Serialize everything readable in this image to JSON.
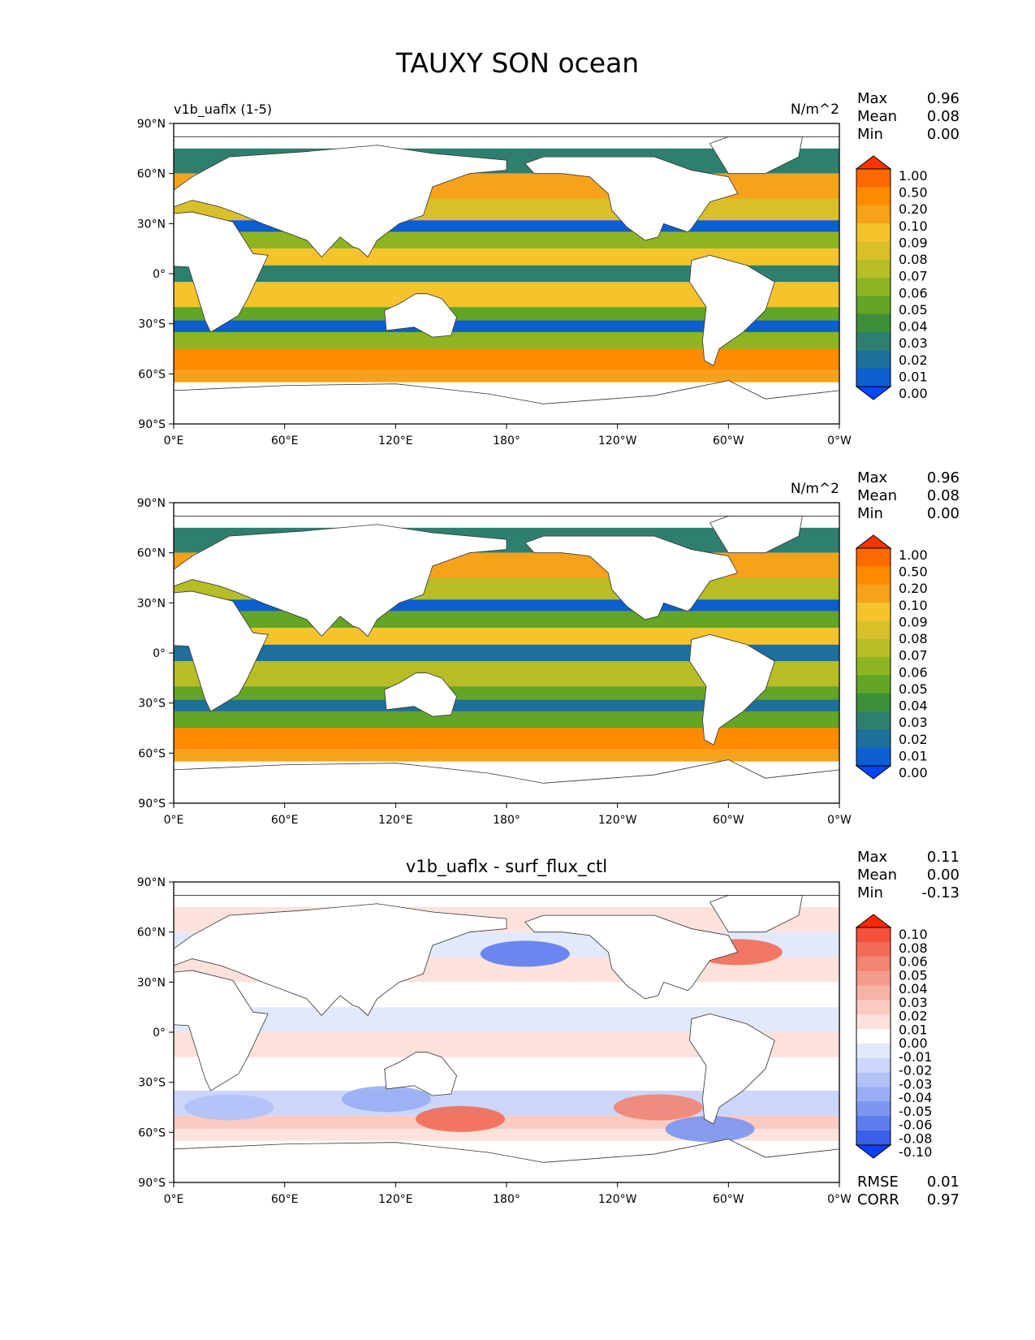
{
  "figure": {
    "title": "TAUXY SON ocean"
  },
  "chart_data": [
    {
      "type": "heatmap",
      "left_title": "v1b_uaflx (1-5)",
      "center_title": "",
      "units": "N/m^2",
      "stats": [
        {
          "label": "Max",
          "value": "0.96"
        },
        {
          "label": "Mean",
          "value": "0.08"
        },
        {
          "label": "Min",
          "value": "0.00"
        }
      ],
      "x_ticks": [
        "0°E",
        "60°E",
        "120°E",
        "180°",
        "120°W",
        "60°W",
        "0°W"
      ],
      "y_ticks": [
        "90°N",
        "60°N",
        "30°N",
        "0°",
        "30°S",
        "60°S",
        "90°S"
      ],
      "xlim": [
        0,
        360
      ],
      "ylim": [
        -90,
        90
      ],
      "colorbar": {
        "levels": [
          "1.00",
          "0.50",
          "0.20",
          "0.10",
          "0.09",
          "0.08",
          "0.07",
          "0.06",
          "0.05",
          "0.04",
          "0.03",
          "0.02",
          "0.01",
          "0.00"
        ],
        "colors": [
          "#ff3300",
          "#ff6a00",
          "#ff8c00",
          "#f7a21b",
          "#f5c32c",
          "#d9c02b",
          "#b6bd25",
          "#8db521",
          "#63a524",
          "#3d8f3a",
          "#2f7f6e",
          "#1d6f9c",
          "#0d5ecf",
          "#0045ff"
        ]
      },
      "zonal_bands": [
        {
          "lat_min": 60,
          "lat_max": 75,
          "level": "0.03"
        },
        {
          "lat_min": 45,
          "lat_max": 60,
          "level": "0.10"
        },
        {
          "lat_min": 32,
          "lat_max": 45,
          "level": "0.08"
        },
        {
          "lat_min": 25,
          "lat_max": 32,
          "level": "0.01"
        },
        {
          "lat_min": 15,
          "lat_max": 25,
          "level": "0.06"
        },
        {
          "lat_min": 5,
          "lat_max": 15,
          "level": "0.09"
        },
        {
          "lat_min": -5,
          "lat_max": 5,
          "level": "0.03"
        },
        {
          "lat_min": -20,
          "lat_max": -5,
          "level": "0.09"
        },
        {
          "lat_min": -28,
          "lat_max": -20,
          "level": "0.05"
        },
        {
          "lat_min": -35,
          "lat_max": -28,
          "level": "0.01"
        },
        {
          "lat_min": -45,
          "lat_max": -35,
          "level": "0.06"
        },
        {
          "lat_min": -58,
          "lat_max": -45,
          "level": "0.20"
        },
        {
          "lat_min": -65,
          "lat_max": -58,
          "level": "0.10"
        }
      ]
    },
    {
      "type": "heatmap",
      "left_title": "",
      "center_title": "",
      "units": "N/m^2",
      "stats": [
        {
          "label": "Max",
          "value": "0.96"
        },
        {
          "label": "Mean",
          "value": "0.08"
        },
        {
          "label": "Min",
          "value": "0.00"
        }
      ],
      "x_ticks": [
        "0°E",
        "60°E",
        "120°E",
        "180°",
        "120°W",
        "60°W",
        "0°W"
      ],
      "y_ticks": [
        "90°N",
        "60°N",
        "30°N",
        "0°",
        "30°S",
        "60°S",
        "90°S"
      ],
      "xlim": [
        0,
        360
      ],
      "ylim": [
        -90,
        90
      ],
      "colorbar": {
        "levels": [
          "1.00",
          "0.50",
          "0.20",
          "0.10",
          "0.09",
          "0.08",
          "0.07",
          "0.06",
          "0.05",
          "0.04",
          "0.03",
          "0.02",
          "0.01",
          "0.00"
        ],
        "colors": [
          "#ff3300",
          "#ff6a00",
          "#ff8c00",
          "#f7a21b",
          "#f5c32c",
          "#d9c02b",
          "#b6bd25",
          "#8db521",
          "#63a524",
          "#3d8f3a",
          "#2f7f6e",
          "#1d6f9c",
          "#0d5ecf",
          "#0045ff"
        ]
      },
      "zonal_bands": [
        {
          "lat_min": 60,
          "lat_max": 75,
          "level": "0.03"
        },
        {
          "lat_min": 45,
          "lat_max": 60,
          "level": "0.10"
        },
        {
          "lat_min": 32,
          "lat_max": 45,
          "level": "0.07"
        },
        {
          "lat_min": 25,
          "lat_max": 32,
          "level": "0.01"
        },
        {
          "lat_min": 15,
          "lat_max": 25,
          "level": "0.05"
        },
        {
          "lat_min": 5,
          "lat_max": 15,
          "level": "0.09"
        },
        {
          "lat_min": -5,
          "lat_max": 5,
          "level": "0.02"
        },
        {
          "lat_min": -20,
          "lat_max": -5,
          "level": "0.07"
        },
        {
          "lat_min": -28,
          "lat_max": -20,
          "level": "0.05"
        },
        {
          "lat_min": -35,
          "lat_max": -28,
          "level": "0.02"
        },
        {
          "lat_min": -45,
          "lat_max": -35,
          "level": "0.05"
        },
        {
          "lat_min": -58,
          "lat_max": -45,
          "level": "0.20"
        },
        {
          "lat_min": -65,
          "lat_max": -58,
          "level": "0.10"
        }
      ]
    },
    {
      "type": "heatmap",
      "left_title": "",
      "center_title": "v1b_uaflx - surf_flux_ctl",
      "units": "",
      "stats": [
        {
          "label": "Max",
          "value": "0.11"
        },
        {
          "label": "Mean",
          "value": "0.00"
        },
        {
          "label": "Min",
          "value": "-0.13"
        }
      ],
      "bottom_stats": [
        {
          "label": "RMSE",
          "value": "0.01"
        },
        {
          "label": "CORR",
          "value": "0.97"
        }
      ],
      "x_ticks": [
        "0°E",
        "60°E",
        "120°E",
        "180°",
        "120°W",
        "60°W",
        "0°W"
      ],
      "y_ticks": [
        "90°N",
        "60°N",
        "30°N",
        "0°",
        "30°S",
        "60°S",
        "90°S"
      ],
      "xlim": [
        0,
        360
      ],
      "ylim": [
        -90,
        90
      ],
      "colorbar": {
        "levels": [
          "0.10",
          "0.08",
          "0.06",
          "0.05",
          "0.04",
          "0.03",
          "0.02",
          "0.01",
          "0.00",
          "-0.01",
          "-0.02",
          "-0.03",
          "-0.04",
          "-0.05",
          "-0.06",
          "-0.08",
          "-0.10"
        ],
        "colors": [
          "#ff2a00",
          "#f5503a",
          "#f26b57",
          "#f28472",
          "#f59b8c",
          "#f8b3a7",
          "#fbcbc2",
          "#fde2dc",
          "#ffffff",
          "#e3e9fc",
          "#ccd6fa",
          "#b2c2f7",
          "#98adf4",
          "#7b95f1",
          "#5d7ced",
          "#3b5fe9",
          "#0d3fff"
        ]
      },
      "zonal_bands": [
        {
          "lat_min": 60,
          "lat_max": 75,
          "level": "0.01"
        },
        {
          "lat_min": 45,
          "lat_max": 60,
          "level": "-0.01"
        },
        {
          "lat_min": 30,
          "lat_max": 45,
          "level": "0.01"
        },
        {
          "lat_min": 15,
          "lat_max": 30,
          "level": "0.00"
        },
        {
          "lat_min": 0,
          "lat_max": 15,
          "level": "-0.01"
        },
        {
          "lat_min": -15,
          "lat_max": 0,
          "level": "0.01"
        },
        {
          "lat_min": -35,
          "lat_max": -15,
          "level": "0.00"
        },
        {
          "lat_min": -50,
          "lat_max": -35,
          "level": "-0.02"
        },
        {
          "lat_min": -58,
          "lat_max": -50,
          "level": "0.02"
        },
        {
          "lat_min": -65,
          "lat_max": -58,
          "level": "0.01"
        }
      ],
      "anomalies": [
        {
          "lon": 190,
          "lat": 47,
          "level": "-0.06"
        },
        {
          "lon": 305,
          "lat": 48,
          "level": "0.06"
        },
        {
          "lon": 155,
          "lat": -52,
          "level": "0.06"
        },
        {
          "lon": 262,
          "lat": -45,
          "level": "0.05"
        },
        {
          "lon": 290,
          "lat": -58,
          "level": "-0.05"
        },
        {
          "lon": 115,
          "lat": -40,
          "level": "-0.04"
        },
        {
          "lon": 30,
          "lat": -45,
          "level": "-0.03"
        }
      ]
    }
  ]
}
